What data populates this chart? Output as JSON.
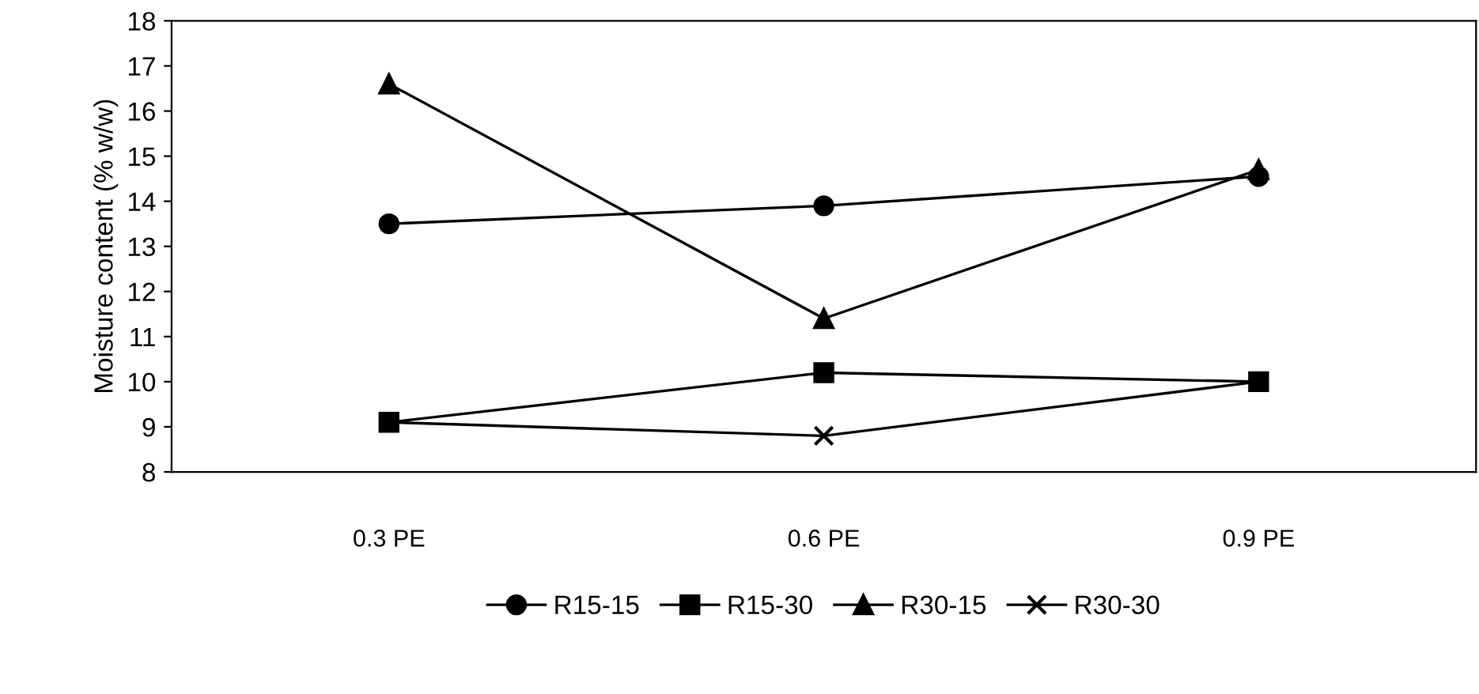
{
  "chart_data": {
    "type": "line",
    "ylabel": "Moisture content (% w/w)",
    "categories": [
      "0.3 PE",
      "0.6 PE",
      "0.9 PE"
    ],
    "series": [
      {
        "name": "R15-15",
        "color": "#000000",
        "marker": "circle",
        "values": [
          13.5,
          13.9,
          14.55
        ]
      },
      {
        "name": "R15-30",
        "color": "#000000",
        "marker": "square",
        "values": [
          9.1,
          10.2,
          10.0
        ]
      },
      {
        "name": "R30-15",
        "color": "#000000",
        "marker": "triangle",
        "values": [
          16.6,
          11.4,
          14.7
        ]
      },
      {
        "name": "R30-30",
        "color": "#000000",
        "marker": "cross",
        "values": [
          9.1,
          8.8,
          10.0
        ]
      }
    ],
    "ylim": [
      8,
      18
    ],
    "yticks": [
      8,
      9,
      10,
      11,
      12,
      13,
      14,
      15,
      16,
      17,
      18
    ],
    "grid": false,
    "legend": "bottom",
    "line_style": "solid"
  }
}
